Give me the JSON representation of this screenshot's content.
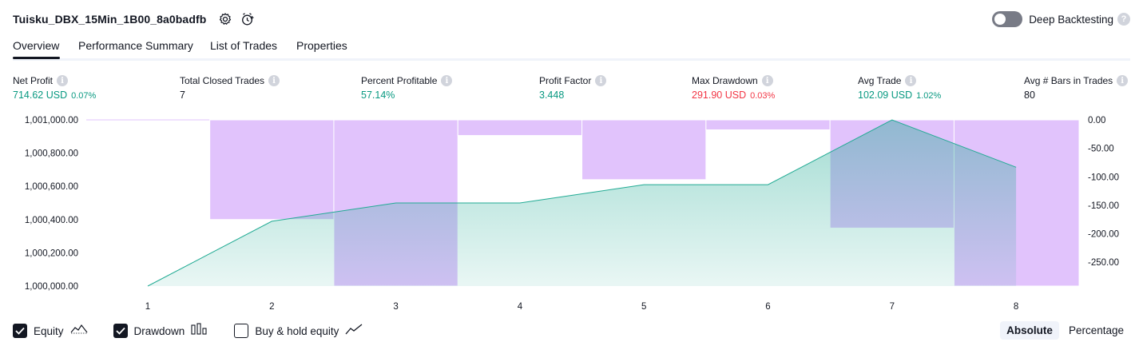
{
  "header": {
    "title": "Tuisku_DBX_15Min_1B00_8a0badfb",
    "settings_icon": "gear-icon",
    "alert_icon": "add-alert-clock-icon",
    "deep_backtesting_label": "Deep Backtesting",
    "deep_backtesting_enabled": false,
    "help_glyph": "?"
  },
  "tabs": [
    {
      "label": "Overview",
      "active": true
    },
    {
      "label": "Performance Summary",
      "active": false
    },
    {
      "label": "List of Trades",
      "active": false
    },
    {
      "label": "Properties",
      "active": false
    }
  ],
  "metrics": {
    "info_glyph": "i",
    "net_profit": {
      "label": "Net Profit",
      "value": "714.62 USD",
      "pct": "0.07%"
    },
    "total_closed_trades": {
      "label": "Total Closed Trades",
      "value": "7"
    },
    "percent_profitable": {
      "label": "Percent Profitable",
      "value": "57.14%"
    },
    "profit_factor": {
      "label": "Profit Factor",
      "value": "3.448"
    },
    "max_drawdown": {
      "label": "Max Drawdown",
      "value": "291.90 USD",
      "pct": "0.03%"
    },
    "avg_trade": {
      "label": "Avg Trade",
      "value": "102.09 USD",
      "pct": "1.02%"
    },
    "avg_bars": {
      "label": "Avg # Bars in Trades",
      "value": "80"
    }
  },
  "colors": {
    "profit": "#089981",
    "loss": "#f23645",
    "equity_line": "#22ab94",
    "drawdown_fill": "#e1c3fc",
    "overlap_fill": "#c6bdf0"
  },
  "chart_data": {
    "type": "area",
    "x": [
      1,
      2,
      3,
      4,
      5,
      6,
      7,
      8
    ],
    "left_axis": {
      "ticks": [
        "1,001,000.00",
        "1,000,800.00",
        "1,000,600.00",
        "1,000,400.00",
        "1,000,200.00",
        "1,000,000.00"
      ],
      "ylim": [
        1000000,
        1001000
      ]
    },
    "right_axis": {
      "ticks": [
        "0.00",
        "-50.00",
        "-100.00",
        "-150.00",
        "-200.00",
        "-250.00"
      ],
      "ylim": [
        -291.9,
        0
      ]
    },
    "series": [
      {
        "name": "Equity",
        "axis": "left",
        "values": [
          1000000,
          1000390,
          1000500,
          1000500,
          1000610,
          1000610,
          1001000,
          1000715
        ]
      },
      {
        "name": "Drawdown",
        "axis": "right",
        "type": "bar",
        "values": [
          0,
          -175,
          -291.9,
          -27.5,
          -105,
          -17.5,
          -190,
          -291.9
        ]
      }
    ],
    "grid": false
  },
  "legend": {
    "equity": {
      "label": "Equity",
      "checked": true,
      "icon": "equity-line-icon"
    },
    "drawdown": {
      "label": "Drawdown",
      "checked": true,
      "icon": "drawdown-bars-icon"
    },
    "buy_hold": {
      "label": "Buy & hold equity",
      "checked": false,
      "icon": "buy-hold-line-icon"
    }
  },
  "mode": {
    "absolute": "Absolute",
    "percentage": "Percentage",
    "selected": "Absolute"
  }
}
